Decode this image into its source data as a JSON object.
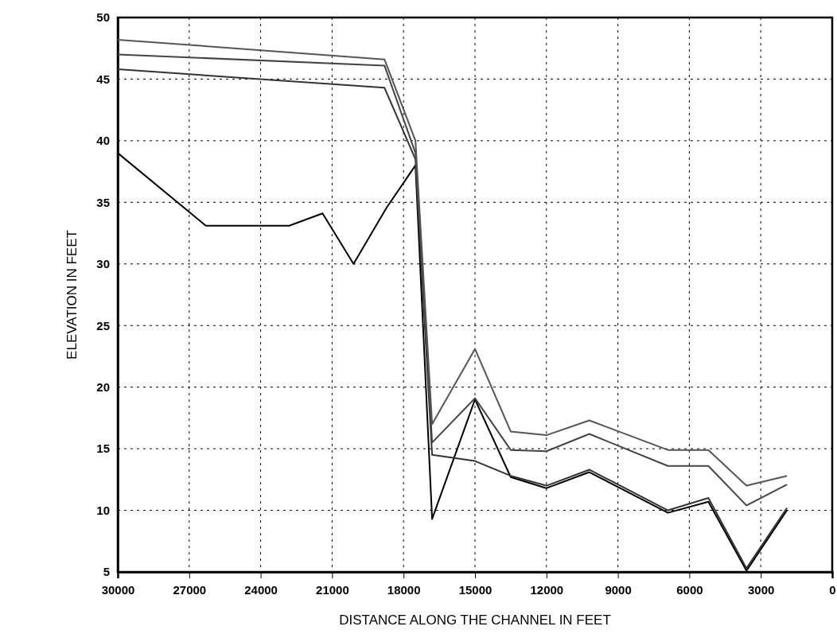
{
  "chart_data": {
    "type": "line",
    "xlabel": "DISTANCE ALONG THE CHANNEL IN FEET",
    "ylabel": "ELEVATION IN FEET",
    "xlim": [
      30000,
      0
    ],
    "xticks": [
      30000,
      27000,
      24000,
      21000,
      18000,
      15000,
      12000,
      9000,
      6000,
      3000,
      0
    ],
    "ylim": [
      5,
      50
    ],
    "yticks": [
      5,
      10,
      15,
      20,
      25,
      30,
      35,
      40,
      45,
      50
    ],
    "grid": true,
    "marker": "none",
    "line_style": "solid",
    "series": [
      {
        "color": "#000000",
        "x": [
          30000,
          26300,
          22800,
          21400,
          20100,
          18700,
          17500,
          16800,
          15000,
          13500,
          12000,
          10200,
          6900,
          5200,
          3600,
          1900
        ],
        "values": [
          39,
          33.1,
          33.1,
          34.1,
          30,
          34.6,
          38,
          9.3,
          19,
          12.7,
          11.8,
          13.1,
          9.8,
          10.7,
          5.1,
          10
        ]
      },
      {
        "color": "#333333",
        "x": [
          30000,
          18800,
          17500,
          16800,
          15000,
          13500,
          12000,
          10200,
          6900,
          5200,
          3600,
          1900
        ],
        "values": [
          45.8,
          44.3,
          38.5,
          14.5,
          14,
          12.8,
          12,
          13.3,
          10,
          11,
          5.3,
          10.2
        ]
      },
      {
        "color": "#444444",
        "x": [
          30000,
          18800,
          17500,
          16800,
          15000,
          13500,
          12000,
          10200,
          6900,
          5200,
          3600,
          1900
        ],
        "values": [
          47,
          46.1,
          39,
          15.5,
          19.1,
          14.9,
          14.8,
          16.2,
          13.6,
          13.6,
          10.4,
          12.1
        ]
      },
      {
        "color": "#555555",
        "x": [
          30000,
          18800,
          17500,
          16800,
          15000,
          13500,
          12000,
          10200,
          6900,
          5200,
          3600,
          1900
        ],
        "values": [
          48.2,
          46.6,
          40,
          17,
          23.1,
          16.4,
          16.1,
          17.3,
          14.9,
          14.9,
          12,
          12.8
        ]
      }
    ]
  }
}
